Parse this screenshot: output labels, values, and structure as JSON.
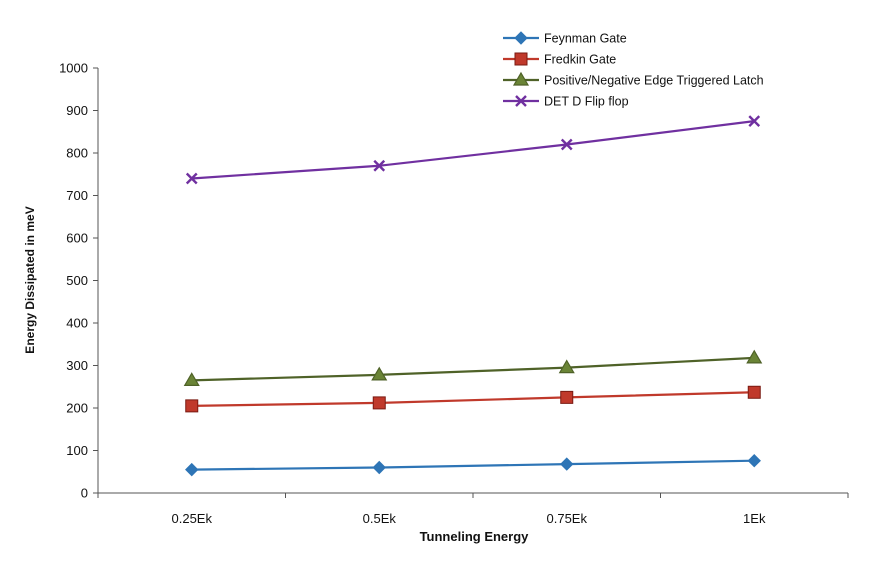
{
  "chart_data": {
    "type": "line",
    "title": "",
    "xlabel": "Tunneling Energy",
    "ylabel": "Energy Dissipated in meV",
    "categories": [
      "0.25Ek",
      "0.5Ek",
      "0.75Ek",
      "1Ek"
    ],
    "ylim": [
      0,
      1000
    ],
    "yticks": [
      "0",
      "100",
      "200",
      "300",
      "400",
      "500",
      "600",
      "700",
      "800",
      "900",
      "1000"
    ],
    "grid": false,
    "legend_position": "top-right",
    "series": [
      {
        "name": "Feynman Gate",
        "values": [
          55,
          60,
          68,
          76
        ],
        "color": "#2e75b6",
        "marker": "diamond"
      },
      {
        "name": "Fredkin Gate",
        "values": [
          205,
          212,
          225,
          237
        ],
        "color": "#c0392b",
        "marker": "square"
      },
      {
        "name": "Positive/Negative Edge Triggered Latch",
        "values": [
          265,
          278,
          295,
          318
        ],
        "color": "#4f6228",
        "marker": "triangle"
      },
      {
        "name": "DET D Flip flop",
        "values": [
          740,
          770,
          820,
          875
        ],
        "color": "#7030a0",
        "marker": "x"
      }
    ]
  }
}
